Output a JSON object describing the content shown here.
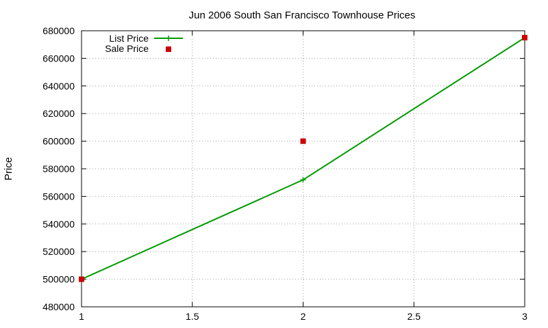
{
  "chart_data": {
    "type": "line",
    "title": "Jun 2006 South San Francisco Townhouse Prices",
    "xlabel": "",
    "ylabel": "Price",
    "xlim": [
      1,
      3
    ],
    "ylim": [
      480000,
      680000
    ],
    "xticks": [
      1,
      1.5,
      2,
      2.5,
      3
    ],
    "xtick_labels": [
      "1",
      "1.5",
      "2",
      "2.5",
      "3"
    ],
    "yticks": [
      480000,
      500000,
      520000,
      540000,
      560000,
      580000,
      600000,
      620000,
      640000,
      660000,
      680000
    ],
    "ytick_labels": [
      "480000",
      "500000",
      "520000",
      "540000",
      "560000",
      "580000",
      "600000",
      "620000",
      "640000",
      "660000",
      "680000"
    ],
    "grid": true,
    "legend_position": "top-left",
    "series": [
      {
        "name": "List Price",
        "style": "line-with-plus-markers",
        "color": "#009900",
        "x": [
          1,
          2,
          3
        ],
        "y": [
          500000,
          572000,
          675000
        ]
      },
      {
        "name": "Sale Price",
        "style": "square-markers",
        "color": "#cc0000",
        "x": [
          1,
          2,
          3
        ],
        "y": [
          500000,
          600000,
          675000
        ]
      }
    ]
  }
}
